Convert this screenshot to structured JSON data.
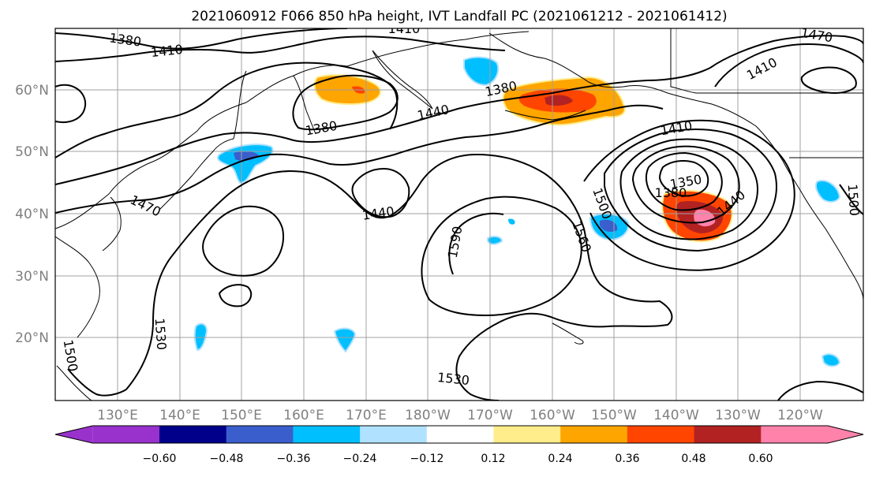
{
  "title": "2021060912 F066 850 hPa height, IVT Landfall PC (2021061212 - 2021061412)",
  "lat_labels": [
    "60°N",
    "50°N",
    "40°N",
    "30°N",
    "20°N"
  ],
  "lon_labels": [
    "130°E",
    "140°E",
    "150°E",
    "160°E",
    "170°E",
    "180°W",
    "170°W",
    "160°W",
    "150°W",
    "140°W",
    "130°W",
    "120°W"
  ],
  "colorbar": {
    "colors": [
      "#9932cc",
      "#00008b",
      "#3a5fcd",
      "#00bfff",
      "#b0e2ff",
      "#ffffff",
      "#ffec8b",
      "#ffa500",
      "#ff4500",
      "#b22222",
      "#ff82ab"
    ],
    "labels": [
      "−0.60",
      "−0.48",
      "−0.36",
      "−0.24",
      "−0.12",
      "0.12",
      "0.24",
      "0.36",
      "0.48",
      "0.60"
    ]
  },
  "contour_labels": [
    "1380",
    "1410",
    "1410",
    "1470",
    "1410",
    "1380",
    "1380",
    "1440",
    "1410",
    "1380",
    "1350",
    "1440",
    "1470",
    "1440",
    "1500",
    "1560",
    "1590",
    "1530",
    "1530",
    "1500",
    "1500"
  ]
}
